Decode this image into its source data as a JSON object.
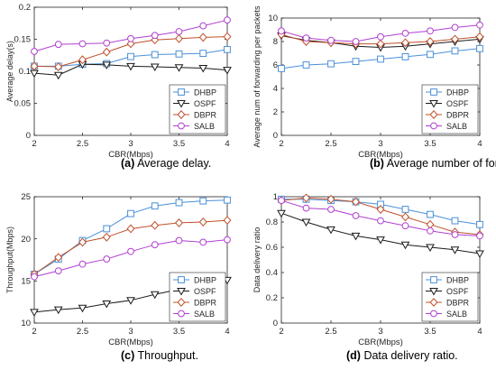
{
  "style": {
    "series_colors": {
      "DHBP": "#4a90d9",
      "OSPF": "#1a1a1a",
      "DBPR": "#c0502a",
      "SALB": "#b040d0"
    },
    "series_markers": {
      "DHBP": "square",
      "OSPF": "triangle-down",
      "DBPR": "diamond",
      "SALB": "circle"
    }
  },
  "chart_data": [
    {
      "panel": "a",
      "caption_label": "(a)",
      "caption_text": "Average delay.",
      "type": "line",
      "xlabel": "CBR(Mbps)",
      "ylabel": "Average delay(s)",
      "xlim": [
        2,
        4
      ],
      "ylim": [
        0,
        0.2
      ],
      "xticks": [
        2,
        2.5,
        3,
        3.5,
        4
      ],
      "xtick_labels": [
        "2",
        "2.5",
        "3",
        "3.5",
        "4"
      ],
      "yticks": [
        0,
        0.05,
        0.1,
        0.15,
        0.2
      ],
      "ytick_labels": [
        "0",
        "0.05",
        "0.1",
        "0.15",
        "0.2"
      ],
      "legend_position": "bottom-right",
      "grid": false,
      "x": [
        2,
        2.25,
        2.5,
        2.75,
        3,
        3.25,
        3.5,
        3.75,
        4
      ],
      "series": [
        {
          "name": "DHBP",
          "values": [
            0.108,
            0.108,
            0.111,
            0.112,
            0.123,
            0.126,
            0.127,
            0.128,
            0.134
          ]
        },
        {
          "name": "OSPF",
          "values": [
            0.097,
            0.094,
            0.111,
            0.11,
            0.108,
            0.107,
            0.106,
            0.105,
            0.102
          ]
        },
        {
          "name": "DBPR",
          "values": [
            0.108,
            0.107,
            0.118,
            0.13,
            0.143,
            0.149,
            0.151,
            0.153,
            0.154
          ]
        },
        {
          "name": "SALB",
          "values": [
            0.131,
            0.142,
            0.143,
            0.144,
            0.151,
            0.156,
            0.162,
            0.171,
            0.18
          ]
        }
      ]
    },
    {
      "panel": "b",
      "caption_label": "(b)",
      "caption_text": "Average number of forwarding per packets.",
      "type": "line",
      "xlabel": "CBR(Mbps)",
      "ylabel": "Average num of forwarding per packets",
      "xlim": [
        2,
        4
      ],
      "ylim": [
        0,
        10
      ],
      "xticks": [
        2,
        2.5,
        3,
        3.5,
        4
      ],
      "xtick_labels": [
        "2",
        "2.5",
        "3",
        "3.5",
        "4"
      ],
      "yticks": [
        0,
        2,
        4,
        6,
        8,
        10
      ],
      "ytick_labels": [
        "0",
        "2",
        "4",
        "6",
        "8",
        "10"
      ],
      "legend_position": "bottom-right",
      "grid": false,
      "x": [
        2,
        2.25,
        2.5,
        2.75,
        3,
        3.25,
        3.5,
        3.75,
        4
      ],
      "series": [
        {
          "name": "DHBP",
          "values": [
            5.7,
            6.0,
            6.1,
            6.3,
            6.5,
            6.7,
            6.9,
            7.2,
            7.4
          ]
        },
        {
          "name": "OSPF",
          "values": [
            8.5,
            8.1,
            7.9,
            7.6,
            7.5,
            7.6,
            7.8,
            8.0,
            8.2
          ]
        },
        {
          "name": "DBPR",
          "values": [
            8.6,
            8.0,
            7.9,
            7.8,
            7.8,
            7.9,
            8.0,
            8.2,
            8.4
          ]
        },
        {
          "name": "SALB",
          "values": [
            8.9,
            8.3,
            8.1,
            8.0,
            8.4,
            8.7,
            8.9,
            9.2,
            9.4
          ]
        }
      ]
    },
    {
      "panel": "c",
      "caption_label": "(c)",
      "caption_text": "Throughput.",
      "type": "line",
      "xlabel": "CBR(Mbps)",
      "ylabel": "Throughput(Mbps)",
      "xlim": [
        2,
        4
      ],
      "ylim": [
        10,
        25
      ],
      "xticks": [
        2,
        2.5,
        3,
        3.5,
        4
      ],
      "xtick_labels": [
        "2",
        "2.5",
        "3",
        "3.5",
        "4"
      ],
      "yticks": [
        10,
        15,
        20,
        25
      ],
      "ytick_labels": [
        "10",
        "15",
        "20",
        "25"
      ],
      "legend_position": "bottom-right",
      "grid": false,
      "x": [
        2,
        2.25,
        2.5,
        2.75,
        3,
        3.25,
        3.5,
        3.75,
        4
      ],
      "series": [
        {
          "name": "DHBP",
          "values": [
            15.8,
            17.6,
            19.8,
            21.2,
            23.0,
            23.9,
            24.3,
            24.5,
            24.6
          ]
        },
        {
          "name": "OSPF",
          "values": [
            11.3,
            11.6,
            11.8,
            12.3,
            12.7,
            13.4,
            14.0,
            14.8,
            15.1
          ]
        },
        {
          "name": "DBPR",
          "values": [
            15.8,
            17.8,
            19.6,
            20.2,
            21.2,
            21.6,
            21.9,
            22.0,
            22.2
          ]
        },
        {
          "name": "SALB",
          "values": [
            15.5,
            16.2,
            17.0,
            17.6,
            18.5,
            19.3,
            19.8,
            19.6,
            19.9
          ]
        }
      ]
    },
    {
      "panel": "d",
      "caption_label": "(d)",
      "caption_text": "Data delivery ratio.",
      "type": "line",
      "xlabel": "CBR(Mbps)",
      "ylabel": "Data delivery ratio",
      "xlim": [
        2,
        4
      ],
      "ylim": [
        0,
        1
      ],
      "xticks": [
        2,
        2.5,
        3,
        3.5,
        4
      ],
      "xtick_labels": [
        "2",
        "2.5",
        "3",
        "3.5",
        "4"
      ],
      "yticks": [
        0,
        0.2,
        0.4,
        0.6,
        0.8,
        1
      ],
      "ytick_labels": [
        "0",
        "0.2",
        "0.4",
        "0.6",
        "0.8",
        "1"
      ],
      "legend_position": "bottom-right",
      "grid": false,
      "x": [
        2,
        2.25,
        2.5,
        2.75,
        3,
        3.25,
        3.5,
        3.75,
        4
      ],
      "series": [
        {
          "name": "DHBP",
          "values": [
            0.98,
            0.98,
            0.97,
            0.96,
            0.94,
            0.9,
            0.86,
            0.81,
            0.78
          ]
        },
        {
          "name": "OSPF",
          "values": [
            0.87,
            0.8,
            0.74,
            0.69,
            0.66,
            0.62,
            0.6,
            0.58,
            0.55
          ]
        },
        {
          "name": "DBPR",
          "values": [
            0.97,
            0.99,
            0.98,
            0.96,
            0.9,
            0.84,
            0.78,
            0.72,
            0.7
          ]
        },
        {
          "name": "SALB",
          "values": [
            0.97,
            0.91,
            0.9,
            0.85,
            0.81,
            0.77,
            0.73,
            0.7,
            0.69
          ]
        }
      ]
    }
  ]
}
